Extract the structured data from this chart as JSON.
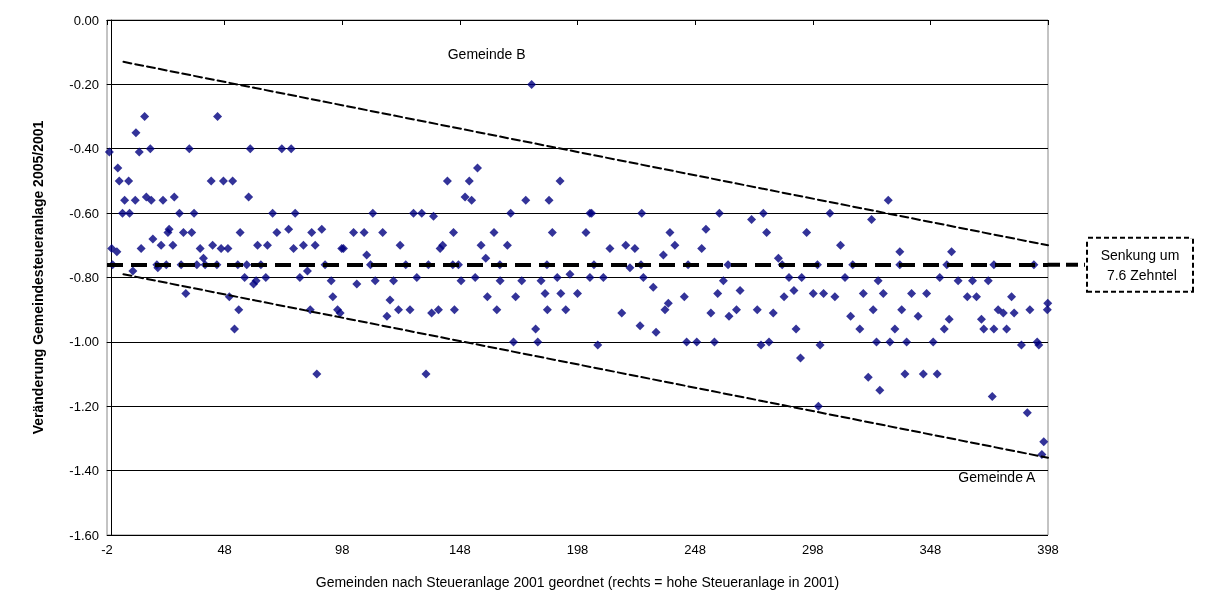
{
  "chart_data": {
    "type": "scatter",
    "xlabel": "Gemeinden nach Steueranlage 2001 geordnet (rechts = hohe Steueranlage in 2001)",
    "ylabel": "Veränderung Gemeindesteueranlage 2005/2001",
    "xlim": [
      -2,
      398
    ],
    "xticks": [
      -2,
      48,
      98,
      148,
      198,
      248,
      298,
      348,
      398
    ],
    "ylim": [
      -1.6,
      0
    ],
    "yticks": [
      {
        "value": 0,
        "label": "0.00"
      },
      {
        "value": -0.2,
        "label": "-0.20"
      },
      {
        "value": -0.4,
        "label": "-0.40"
      },
      {
        "value": -0.6,
        "label": "-0.60"
      },
      {
        "value": -0.8,
        "label": "-0.80"
      },
      {
        "value": -1,
        "label": "-1.00"
      },
      {
        "value": -1.2,
        "label": "-1.20"
      },
      {
        "value": -1.4,
        "label": "-1.40"
      },
      {
        "value": -1.6,
        "label": "-1.60"
      }
    ],
    "grid": "y",
    "marker": "diamond",
    "series": [
      {
        "color": "#000080",
        "x": [
          -1,
          0,
          0.4,
          2.2,
          2.6,
          3.2,
          7.2,
          5.5,
          4.6,
          7.6,
          9,
          10,
          10.3,
          11.7,
          12.5,
          14,
          14.7,
          16.4,
          16.8,
          17.5,
          19.2,
          19.6,
          21,
          21.8,
          23.2,
          23.9,
          24.4,
          26,
          26.6,
          28.8,
          29.5,
          30.5,
          31.5,
          33,
          34,
          35,
          36.2,
          37.6,
          39,
          39.7,
          42.3,
          42.9,
          44.7,
          45,
          46.5,
          47.5,
          49.4,
          50,
          51.4,
          52.2,
          54,
          54.6,
          53.6,
          56.5,
          57.4,
          58.2,
          58.9,
          60.3,
          61.4,
          62,
          63.4,
          65.5,
          66.2,
          68.4,
          70.2,
          72.3,
          75.2,
          76.3,
          77.3,
          78,
          80,
          81.5,
          83.2,
          84.4,
          85,
          86.5,
          87.2,
          89.3,
          90.7,
          93.3,
          94,
          96,
          97.8,
          98.5,
          97.1,
          102.8,
          104.2,
          107.3,
          108.4,
          111,
          112,
          115.2,
          117,
          118.3,
          119.8,
          121.9,
          122.6,
          126.8,
          128.3,
          129.7,
          131.8,
          133.6,
          134.6,
          136.8,
          136,
          138.9,
          139.6,
          140.7,
          142.7,
          145.3,
          145.7,
          147.4,
          148.5,
          150.2,
          152,
          153,
          155.5,
          154.5,
          157,
          159,
          159.7,
          162.5,
          163.7,
          165.1,
          168.2,
          169.6,
          170.8,
          171.7,
          174.3,
          176,
          178.5,
          180.2,
          181.1,
          182.5,
          184.2,
          185.2,
          185.9,
          187.3,
          189.4,
          190.6,
          190.9,
          193,
          194.8,
          198,
          201.6,
          203.3,
          204,
          203.3,
          206.6,
          209,
          211.8,
          216.8,
          218.5,
          220.3,
          222.4,
          224.6,
          225.3,
          226,
          230.2,
          231.4,
          234.5,
          235.2,
          236.6,
          237.3,
          239.4,
          243.4,
          244.4,
          248.7,
          250.8,
          252.6,
          254.7,
          256.2,
          257.6,
          258.3,
          260,
          262.4,
          265.6,
          267.1,
          272,
          274.4,
          276,
          277,
          278.4,
          279.4,
          281.2,
          283.4,
          285.8,
          287.9,
          290,
          290.9,
          292.8,
          293.3,
          295.4,
          298.2,
          300.4,
          301.1,
          302.6,
          305.3,
          307.4,
          309.8,
          311.7,
          314.1,
          318,
          319.5,
          321.6,
          323,
          323.7,
          325.1,
          325.8,
          326.5,
          328,
          330.1,
          330.8,
          332.9,
          335,
          335.8,
          337.2,
          337.9,
          340,
          342.8,
          345,
          346.4,
          349.2,
          350.9,
          352,
          353.9,
          356,
          357,
          359.8,
          363.7,
          365.9,
          367.6,
          369.7,
          370.7,
          372.6,
          374.3,
          375,
          376.8,
          379,
          380.4,
          382.5,
          383.6,
          386.7,
          389.2,
          390.3,
          393.4,
          394.1,
          395.4,
          396.2,
          397.7,
          397.9,
          110,
          125,
          145,
          165,
          185,
          205,
          225,
          245,
          262,
          285,
          300,
          315,
          335,
          355,
          375,
          392
        ],
        "values": [
          -0.41,
          -0.71,
          -0.76,
          -0.72,
          -0.46,
          -0.5,
          -0.5,
          -0.56,
          -0.6,
          -0.6,
          -0.78,
          -0.56,
          -0.35,
          -0.41,
          -0.71,
          -0.3,
          -0.55,
          -0.4,
          -0.56,
          -0.68,
          -0.76,
          -0.77,
          -0.7,
          -0.56,
          -0.76,
          -0.66,
          -0.65,
          -0.7,
          -0.55,
          -0.6,
          -0.76,
          -0.66,
          -0.85,
          -0.4,
          -0.66,
          -0.6,
          -0.76,
          -0.71,
          -0.74,
          -0.76,
          -0.5,
          -0.7,
          -0.76,
          -0.3,
          -0.71,
          -0.5,
          -0.71,
          -0.86,
          -0.5,
          -0.96,
          -0.9,
          -0.66,
          -0.76,
          -0.8,
          -0.76,
          -0.55,
          -0.4,
          -0.82,
          -0.81,
          -0.7,
          -0.76,
          -0.8,
          -0.7,
          -0.6,
          -0.66,
          -0.4,
          -0.65,
          -0.4,
          -0.71,
          -0.6,
          -0.8,
          -0.7,
          -0.78,
          -0.9,
          -0.66,
          -0.7,
          -1.1,
          -0.65,
          -0.76,
          -0.81,
          -0.86,
          -0.9,
          -0.71,
          -0.71,
          -0.91,
          -0.66,
          -0.82,
          -0.66,
          -0.73,
          -0.6,
          -0.81,
          -0.66,
          -0.92,
          -0.87,
          -0.81,
          -0.9,
          -0.7,
          -0.9,
          -0.6,
          -0.8,
          -0.6,
          -1.1,
          -0.76,
          -0.61,
          -0.91,
          -0.9,
          -0.71,
          -0.7,
          -0.5,
          -0.66,
          -0.9,
          -0.76,
          -0.81,
          -0.55,
          -0.5,
          -0.56,
          -0.46,
          -0.8,
          -0.7,
          -0.74,
          -0.86,
          -0.66,
          -0.9,
          -0.81,
          -0.7,
          -0.6,
          -1,
          -0.86,
          -0.81,
          -0.56,
          -0.2,
          -0.96,
          -1,
          -0.81,
          -0.85,
          -0.9,
          -0.56,
          -0.66,
          -0.8,
          -0.5,
          -0.85,
          -0.9,
          -0.79,
          -0.85,
          -0.66,
          -0.6,
          -0.6,
          -0.8,
          -1.01,
          -0.8,
          -0.71,
          -0.91,
          -0.7,
          -0.77,
          -0.71,
          -0.95,
          -0.6,
          -0.8,
          -0.83,
          -0.97,
          -0.73,
          -0.9,
          -0.88,
          -0.66,
          -0.7,
          -0.86,
          -1,
          -1,
          -0.71,
          -0.65,
          -0.91,
          -1,
          -0.85,
          -0.6,
          -0.81,
          -0.92,
          -0.9,
          -0.84,
          -0.62,
          -0.9,
          -1.01,
          -0.6,
          -0.66,
          -1,
          -0.91,
          -0.74,
          -0.86,
          -0.8,
          -0.84,
          -0.96,
          -1.05,
          -0.8,
          -0.66,
          -0.85,
          -1.2,
          -1.01,
          -0.85,
          -0.6,
          -0.86,
          -0.7,
          -0.8,
          -0.92,
          -0.96,
          -0.85,
          -1.11,
          -0.62,
          -0.9,
          -1,
          -0.81,
          -1.15,
          -0.85,
          -0.56,
          -1,
          -0.96,
          -0.72,
          -0.9,
          -1.1,
          -1,
          -0.85,
          -0.92,
          -1.1,
          -0.85,
          -1,
          -1.1,
          -0.8,
          -0.96,
          -0.93,
          -0.72,
          -0.81,
          -0.86,
          -0.81,
          -0.86,
          -0.93,
          -0.96,
          -0.81,
          -1.17,
          -0.96,
          -0.9,
          -0.91,
          -0.96,
          -0.86,
          -0.91,
          -1.01,
          -1.22,
          -0.9,
          -1,
          -1.01,
          -1.35,
          -1.31,
          -0.9,
          -0.88,
          -0.76,
          -0.76,
          -0.76,
          -0.76,
          -0.76,
          -0.76,
          -0.76,
          -0.76,
          -0.76,
          -0.76,
          -0.76,
          -0.76,
          -0.76,
          -0.76,
          -0.76,
          -0.76
        ]
      },
      {
        "type": "line",
        "color": "#000000",
        "line_style": "dashed",
        "marker": "none",
        "x": [
          5,
          398
        ],
        "values": [
          -0.13,
          -0.7
        ]
      },
      {
        "type": "line",
        "color": "#000000",
        "line_style": "dashed",
        "marker": "none",
        "x": [
          5,
          398
        ],
        "values": [
          -0.79,
          -1.36
        ]
      }
    ],
    "ref_lines": [
      {
        "axis": "y",
        "value": -0.76,
        "label": "Senkung um 7.6 Zehntel",
        "color": "#000000",
        "line_style": "dashed"
      }
    ],
    "annotations": [
      {
        "text": "Gemeinde B",
        "x": 178.5,
        "y": -0.2
      },
      {
        "text": "Gemeinde A",
        "x": 395.4,
        "y": -1.35
      }
    ]
  }
}
